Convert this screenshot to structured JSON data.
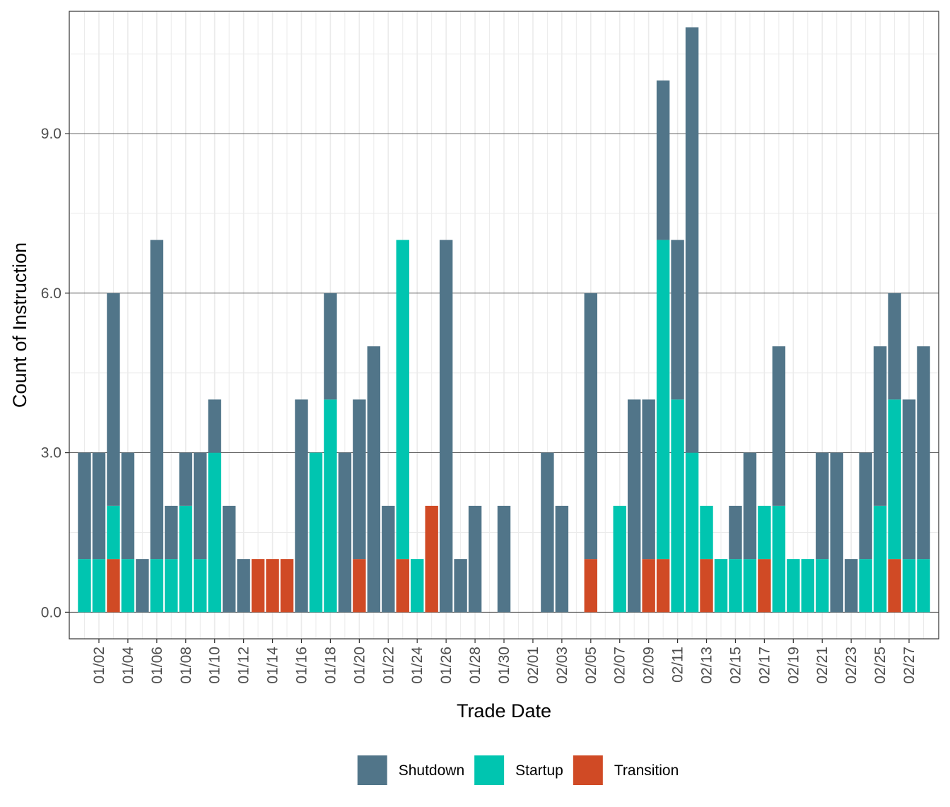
{
  "chart_data": {
    "type": "bar",
    "stacked": true,
    "xlabel": "Trade Date",
    "ylabel": "Count of Instruction",
    "ylim": [
      -0.5,
      11.3
    ],
    "y_ticks": [
      "0.0",
      "3.0",
      "6.0",
      "9.0"
    ],
    "y_tick_values": [
      0,
      3,
      6,
      9
    ],
    "grid": true,
    "legend_position": "bottom",
    "x_tick_labels": [
      "01/02",
      "01/04",
      "01/06",
      "01/08",
      "01/10",
      "01/12",
      "01/14",
      "01/16",
      "01/18",
      "01/20",
      "01/22",
      "01/24",
      "01/26",
      "01/28",
      "01/30",
      "02/01",
      "02/03",
      "02/05",
      "02/07",
      "02/09",
      "02/11",
      "02/13",
      "02/15",
      "02/17",
      "02/19",
      "02/21",
      "02/23",
      "02/25",
      "02/27"
    ],
    "categories": [
      "01/01",
      "01/02",
      "01/03",
      "01/04",
      "01/05",
      "01/06",
      "01/07",
      "01/08",
      "01/09",
      "01/10",
      "01/11",
      "01/12",
      "01/13",
      "01/14",
      "01/15",
      "01/16",
      "01/17",
      "01/18",
      "01/19",
      "01/20",
      "01/21",
      "01/22",
      "01/23",
      "01/24",
      "01/25",
      "01/26",
      "01/27",
      "01/28",
      "01/29",
      "01/30",
      "01/31",
      "02/01",
      "02/02",
      "02/03",
      "02/04",
      "02/05",
      "02/06",
      "02/07",
      "02/08",
      "02/09",
      "02/10",
      "02/11",
      "02/12",
      "02/13",
      "02/14",
      "02/15",
      "02/16",
      "02/17",
      "02/18",
      "02/19",
      "02/20",
      "02/21",
      "02/22",
      "02/23",
      "02/24",
      "02/25",
      "02/26",
      "02/27",
      "02/28"
    ],
    "series": [
      {
        "name": "Transition",
        "color": "#d04a25",
        "values": [
          0,
          0,
          1,
          0,
          0,
          0,
          0,
          0,
          0,
          0,
          0,
          0,
          1,
          1,
          1,
          0,
          0,
          0,
          0,
          1,
          0,
          0,
          1,
          0,
          2,
          0,
          0,
          0,
          0,
          0,
          0,
          0,
          0,
          0,
          0,
          1,
          0,
          0,
          0,
          1,
          1,
          0,
          0,
          1,
          0,
          0,
          0,
          1,
          0,
          0,
          0,
          0,
          0,
          0,
          0,
          0,
          1,
          0,
          0
        ]
      },
      {
        "name": "Startup",
        "color": "#00c5b0",
        "values": [
          1,
          1,
          1,
          1,
          0,
          1,
          1,
          2,
          1,
          3,
          0,
          0,
          0,
          0,
          0,
          0,
          3,
          4,
          0,
          0,
          0,
          0,
          6,
          1,
          0,
          0,
          0,
          0,
          0,
          0,
          0,
          0,
          0,
          0,
          0,
          0,
          0,
          2,
          0,
          0,
          6,
          4,
          3,
          1,
          1,
          1,
          1,
          1,
          2,
          1,
          1,
          1,
          0,
          0,
          1,
          2,
          3,
          1,
          1
        ]
      },
      {
        "name": "Shutdown",
        "color": "#517589",
        "values": [
          2,
          2,
          4,
          2,
          1,
          6,
          1,
          1,
          2,
          1,
          2,
          1,
          0,
          0,
          0,
          4,
          0,
          2,
          3,
          3,
          5,
          2,
          0,
          0,
          0,
          7,
          1,
          2,
          0,
          2,
          0,
          0,
          3,
          2,
          0,
          5,
          0,
          0,
          4,
          3,
          3,
          3,
          8,
          0,
          0,
          1,
          2,
          0,
          3,
          0,
          0,
          2,
          3,
          1,
          2,
          3,
          2,
          3,
          4
        ]
      }
    ]
  },
  "legend": {
    "items": [
      {
        "label": "Shutdown",
        "color": "#517589"
      },
      {
        "label": "Startup",
        "color": "#00c5b0"
      },
      {
        "label": "Transition",
        "color": "#d04a25"
      }
    ]
  }
}
